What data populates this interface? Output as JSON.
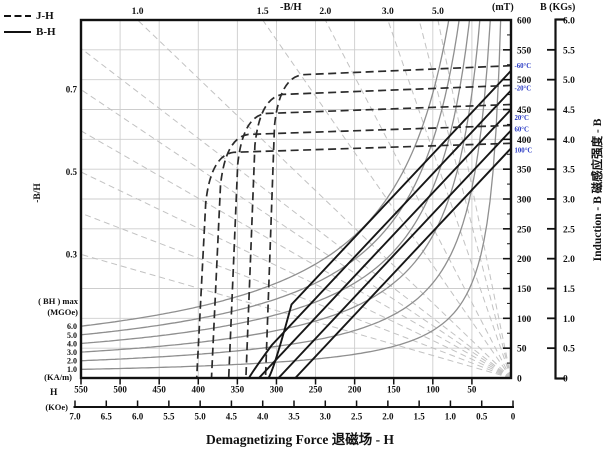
{
  "legend": {
    "jh_label": "J-H",
    "bh_label": "B-H"
  },
  "labels": {
    "top_ratio_axis": "-B/H",
    "left_ratio_axis": "-B/H",
    "mt_unit": "(mT)",
    "b_kgs_unit": "B (KGs)",
    "right_axis_title": "Induction - B 磁感应强度 - B",
    "bhmax_line1": "( BH ) max",
    "bhmax_line2": "(MGOe)",
    "kam_unit": "(KA/m)",
    "h_label": "H",
    "koe_unit": "(KOe)",
    "x_axis_title": "Demagnetizing Force 退磁场 - H"
  },
  "chart_data": {
    "type": "line",
    "title": "Demagnetizing Force 退磁场 - H",
    "description": "Permanent magnet (ferrite) demagnetization curves: dashed J-H intrinsic curves and solid B-H normal curves at five temperatures, with -B/H load lines and (BH)max contours.",
    "x_axis": {
      "unit_primary": "(KA/m)",
      "ticks_kam": [
        "550",
        "500",
        "450",
        "400",
        "350",
        "300",
        "250",
        "200",
        "150",
        "100",
        "50"
      ],
      "unit_secondary": "(KOe)",
      "ticks_koe": [
        "7.0",
        "6.5",
        "6.0",
        "5.5",
        "5.0",
        "4.5",
        "4.0",
        "3.5",
        "3.0",
        "2.5",
        "2.0",
        "1.5",
        "1.0",
        "0.5",
        "0"
      ],
      "range_kam": [
        0,
        550
      ],
      "zero_at_right": true
    },
    "y_axis": {
      "title": "Induction - B 磁感应强度 - B",
      "unit_primary": "(mT)",
      "ticks_mt": [
        "600",
        "550",
        "500",
        "450",
        "400",
        "350",
        "300",
        "250",
        "200",
        "150",
        "100",
        "50",
        "0"
      ],
      "unit_secondary": "B (KGs)",
      "ticks_kgs": [
        "6.0",
        "5.5",
        "5.0",
        "4.5",
        "4.0",
        "3.5",
        "3.0",
        "2.5",
        "2.0",
        "1.5",
        "1.0",
        "0.5",
        "0"
      ],
      "range_mt": [
        0,
        600
      ]
    },
    "load_lines_b_over_h": {
      "axis_label": "-B/H",
      "top_labeled": [
        {
          "value": 1.0,
          "label": "1.0"
        },
        {
          "value": 1.5,
          "label": "1.5"
        },
        {
          "value": 2.0,
          "label": "2.0"
        },
        {
          "value": 3.0,
          "label": "3.0"
        },
        {
          "value": 5.0,
          "label": "5.0"
        }
      ],
      "left_labeled": [
        {
          "value": 0.7,
          "label": "0.7"
        },
        {
          "value": 0.5,
          "label": "0.5"
        },
        {
          "value": 0.3,
          "label": "0.3"
        }
      ],
      "unlabeled": [
        0.8,
        0.6,
        0.4,
        4.0
      ]
    },
    "bh_max_contours": {
      "unit": "MGOe",
      "labels": [
        "6.0",
        "5.0",
        "4.0",
        "3.0",
        "2.0",
        "1.0"
      ],
      "values": [
        6,
        5,
        4,
        3,
        2,
        1
      ]
    },
    "series": [
      {
        "temperature": "-60°C",
        "br_mT": 515,
        "knee_hcj_kam": 300,
        "curves": [
          "J-H dashed",
          "B-H solid"
        ]
      },
      {
        "temperature": "-20°C",
        "br_mT": 482,
        "knee_hcj_kam": 325,
        "curves": [
          "J-H dashed",
          "B-H solid"
        ]
      },
      {
        "temperature": "20°C",
        "br_mT": 450,
        "knee_hcj_kam": 347,
        "curves": [
          "J-H dashed",
          "B-H solid"
        ]
      },
      {
        "temperature": "60°C",
        "br_mT": 415,
        "knee_hcj_kam": 369,
        "curves": [
          "J-H dashed",
          "B-H solid"
        ]
      },
      {
        "temperature": "100°C",
        "br_mT": 385,
        "knee_hcj_kam": 388,
        "curves": [
          "J-H dashed",
          "B-H solid"
        ]
      }
    ],
    "colors": {
      "temp_label": "#2b3cc4",
      "curve_dark": "#161616",
      "jh_dash": "#2b2b2b",
      "grid": "#cdcdcd",
      "load_line": "#c2c2c2",
      "bh_contour": "#8f8f8f"
    },
    "legend": [
      {
        "style": "dashed",
        "label": "J-H"
      },
      {
        "style": "solid",
        "label": "B-H"
      }
    ]
  }
}
